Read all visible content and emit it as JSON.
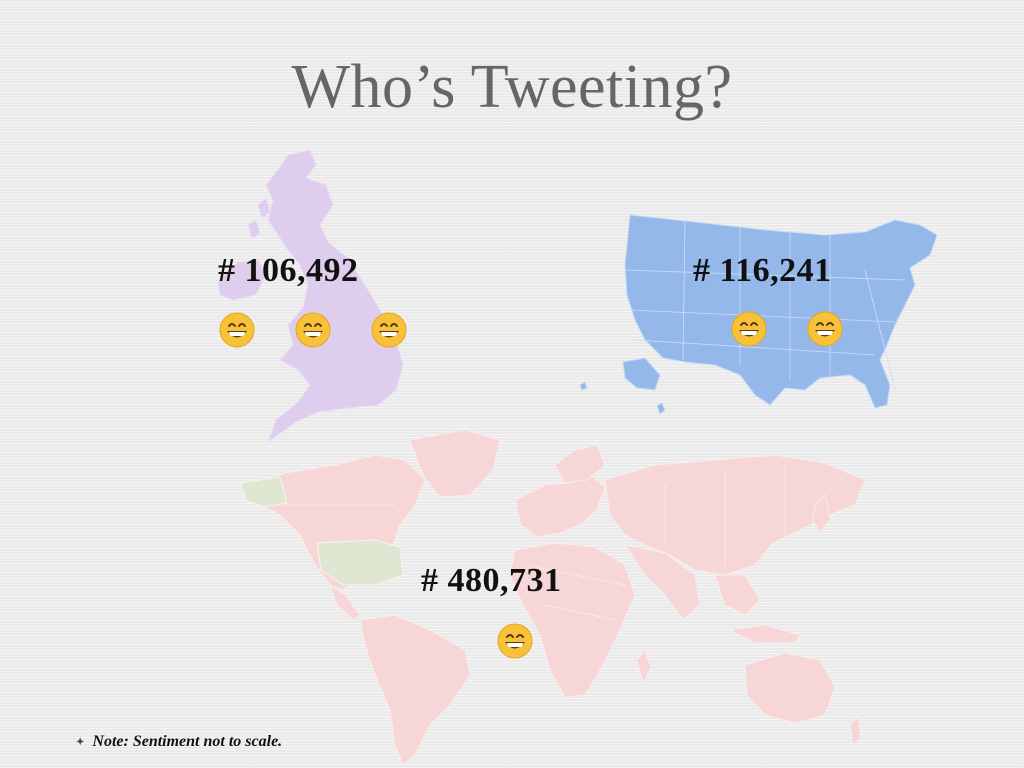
{
  "slide": {
    "title": "Who’s Tweeting?",
    "note": "Note: Sentiment not to scale.",
    "note_bullet": "✦"
  },
  "regions": [
    {
      "name": "uk",
      "count_label": "# 106,492",
      "emoji_count": 3,
      "map_color": "#ddccec",
      "emoji_icon": "grinning-face-icon"
    },
    {
      "name": "usa",
      "count_label": "# 116,241",
      "emoji_count": 2,
      "map_color": "#94b8ea",
      "emoji_icon": "grinning-face-icon"
    },
    {
      "name": "world",
      "count_label": "# 480,731",
      "emoji_count": 1,
      "map_color": "#f5d3d3",
      "highlight_color": "#dce6d0",
      "emoji_icon": "grinning-face-icon"
    }
  ]
}
